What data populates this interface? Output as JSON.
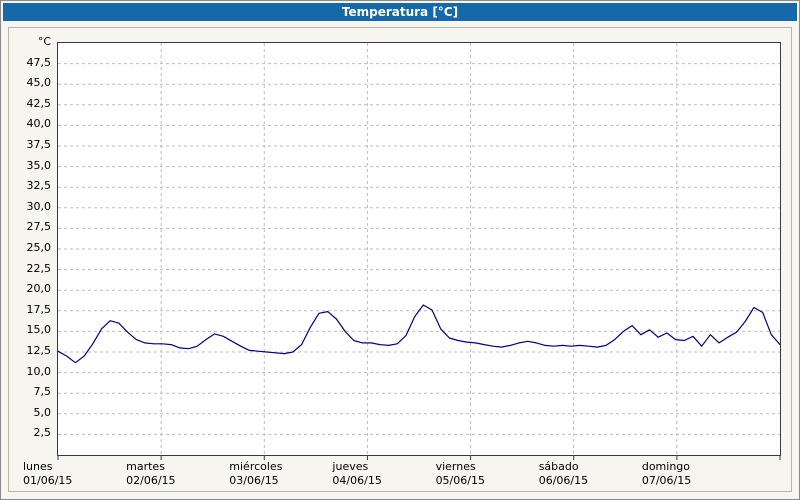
{
  "window": {
    "title": "Temperatura [°C]"
  },
  "colors": {
    "titlebar": "#1569a8",
    "panel_bg": "#f7f5ef",
    "plot_bg": "#ffffff",
    "plot_border": "#3a3a3a",
    "grid": "#bdbdbd",
    "line": "#00008b",
    "text": "#000000"
  },
  "chart_data": {
    "type": "line",
    "title": "Temperatura [°C]",
    "unit_label": "°C",
    "ylim": [
      0,
      50
    ],
    "ytick_step": 2.5,
    "ytick_labels": [
      "47,5",
      "45,0",
      "42,5",
      "40,0",
      "37,5",
      "35,0",
      "32,5",
      "30,0",
      "27,5",
      "25,0",
      "22,5",
      "20,0",
      "17,5",
      "15,0",
      "12,5",
      "10,0",
      "7,5",
      "5,0",
      "2,5"
    ],
    "grid": {
      "style": "dashed",
      "horizontal": true,
      "vertical": true
    },
    "legend": "none",
    "x_axis": {
      "days": [
        {
          "name": "lunes",
          "date": "01/06/15"
        },
        {
          "name": "martes",
          "date": "02/06/15"
        },
        {
          "name": "miércoles",
          "date": "03/06/15"
        },
        {
          "name": "jueves",
          "date": "04/06/15"
        },
        {
          "name": "viernes",
          "date": "05/06/15"
        },
        {
          "name": "sábado",
          "date": "06/06/15"
        },
        {
          "name": "domingo",
          "date": "07/06/15"
        }
      ]
    },
    "series": [
      {
        "name": "Temperatura",
        "color": "#00008b",
        "points_per_day": 12,
        "sample_interval_hours": 2,
        "values": [
          12.6,
          12.0,
          11.2,
          12.0,
          13.5,
          15.3,
          16.3,
          16.0,
          14.9,
          14.0,
          13.6,
          13.5,
          13.5,
          13.4,
          13.0,
          12.9,
          13.2,
          14.0,
          14.7,
          14.4,
          13.8,
          13.2,
          12.7,
          12.6,
          12.5,
          12.4,
          12.3,
          12.5,
          13.4,
          15.5,
          17.2,
          17.4,
          16.5,
          15.0,
          13.9,
          13.6,
          13.6,
          13.4,
          13.3,
          13.5,
          14.5,
          16.8,
          18.2,
          17.6,
          15.3,
          14.2,
          13.9,
          13.7,
          13.6,
          13.4,
          13.2,
          13.1,
          13.3,
          13.6,
          13.8,
          13.6,
          13.3,
          13.2,
          13.3,
          13.2,
          13.3,
          13.2,
          13.1,
          13.3,
          14.0,
          15.0,
          15.7,
          14.6,
          15.2,
          14.3,
          14.8,
          14.0,
          13.9,
          14.4,
          13.2,
          14.6,
          13.6,
          14.3,
          14.9,
          16.2,
          17.9,
          17.3,
          14.6,
          13.4
        ]
      }
    ]
  }
}
